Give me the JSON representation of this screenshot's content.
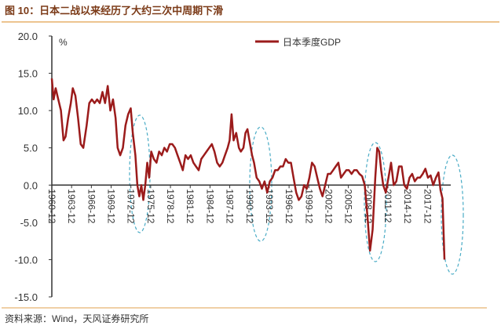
{
  "chart_data": {
    "type": "line",
    "title": "图 10：日本二战以来经历了大约三次中周期下滑",
    "source": "资料来源：Wind，天风证券研究所",
    "y_unit": "%",
    "ylim": [
      -15,
      20
    ],
    "yticks": [
      {
        "value": -15,
        "label": "-15.0"
      },
      {
        "value": -10,
        "label": "-10.0"
      },
      {
        "value": -5,
        "label": "-5.0"
      },
      {
        "value": 0,
        "label": "0.0"
      },
      {
        "value": 5,
        "label": "5.0"
      },
      {
        "value": 10,
        "label": "10.0"
      },
      {
        "value": 15,
        "label": "15.0"
      },
      {
        "value": 20,
        "label": "20.0"
      }
    ],
    "xlim": [
      1960.92,
      2020.5
    ],
    "xticks": [
      {
        "value": 1960.92,
        "label": "1960-12"
      },
      {
        "value": 1963.92,
        "label": "1963-12"
      },
      {
        "value": 1966.92,
        "label": "1966-12"
      },
      {
        "value": 1969.92,
        "label": "1969-12"
      },
      {
        "value": 1972.92,
        "label": "1972-12"
      },
      {
        "value": 1975.92,
        "label": "1975-12"
      },
      {
        "value": 1978.92,
        "label": "1978-12"
      },
      {
        "value": 1981.92,
        "label": "1981-12"
      },
      {
        "value": 1984.92,
        "label": "1984-12"
      },
      {
        "value": 1987.92,
        "label": "1987-12"
      },
      {
        "value": 1990.92,
        "label": "1990-12"
      },
      {
        "value": 1993.92,
        "label": "1993-12"
      },
      {
        "value": 1996.92,
        "label": "1996-12"
      },
      {
        "value": 1999.92,
        "label": "1999-12"
      },
      {
        "value": 2002.92,
        "label": "2002-12"
      },
      {
        "value": 2005.92,
        "label": "2005-12"
      },
      {
        "value": 2008.92,
        "label": "2008-12"
      },
      {
        "value": 2011.92,
        "label": "2011-12"
      },
      {
        "value": 2014.92,
        "label": "2014-12"
      },
      {
        "value": 2017.92,
        "label": "2017-12"
      }
    ],
    "x": [
      1960.92,
      1961.2,
      1961.5,
      1961.9,
      1962.3,
      1962.7,
      1963.0,
      1963.4,
      1963.8,
      1964.1,
      1964.5,
      1964.9,
      1965.3,
      1965.7,
      1966.2,
      1966.6,
      1967.0,
      1967.4,
      1967.8,
      1968.2,
      1968.6,
      1969.0,
      1969.4,
      1969.8,
      1970.2,
      1970.6,
      1970.9,
      1971.3,
      1971.7,
      1972.1,
      1972.5,
      1972.9,
      1973.2,
      1973.6,
      1973.9,
      1974.2,
      1974.5,
      1974.8,
      1975.1,
      1975.4,
      1975.7,
      1976.0,
      1976.4,
      1976.8,
      1977.2,
      1977.6,
      1978.0,
      1978.4,
      1978.8,
      1979.2,
      1979.6,
      1980.0,
      1980.4,
      1980.8,
      1981.2,
      1981.6,
      1982.0,
      1982.4,
      1982.8,
      1983.2,
      1983.6,
      1984.0,
      1984.4,
      1984.8,
      1985.2,
      1985.6,
      1986.0,
      1986.4,
      1986.8,
      1987.2,
      1987.6,
      1987.9,
      1988.2,
      1988.5,
      1988.9,
      1989.3,
      1989.6,
      1990.0,
      1990.3,
      1990.6,
      1990.9,
      1991.3,
      1991.6,
      1992.0,
      1992.4,
      1992.8,
      1993.2,
      1993.6,
      1994.0,
      1994.4,
      1994.8,
      1995.2,
      1995.6,
      1996.0,
      1996.4,
      1996.8,
      1997.2,
      1997.6,
      1998.0,
      1998.4,
      1998.8,
      1999.2,
      1999.6,
      2000.0,
      2000.4,
      2000.8,
      2001.2,
      2001.6,
      2002.0,
      2002.4,
      2002.8,
      2003.2,
      2003.6,
      2004.0,
      2004.4,
      2004.8,
      2005.2,
      2005.6,
      2006.0,
      2006.4,
      2006.8,
      2007.2,
      2007.6,
      2008.0,
      2008.4,
      2008.8,
      2009.2,
      2009.6,
      2010.0,
      2010.3,
      2010.6,
      2010.9,
      2011.2,
      2011.6,
      2012.0,
      2012.4,
      2012.8,
      2013.2,
      2013.6,
      2014.0,
      2014.4,
      2014.8,
      2015.2,
      2015.6,
      2016.0,
      2016.4,
      2016.8,
      2017.2,
      2017.6,
      2018.0,
      2018.4,
      2018.8,
      2019.2,
      2019.6,
      2019.9,
      2020.2,
      2020.5
    ],
    "series": [
      {
        "name": "日本季度GDP",
        "color": "#9b1b1b",
        "values": [
          14.3,
          11.5,
          13,
          11.5,
          10,
          6,
          6.5,
          9,
          11,
          13,
          12,
          9,
          5.5,
          5,
          8,
          11,
          11.5,
          11,
          11.5,
          11,
          12.5,
          11,
          13.3,
          10,
          11.5,
          9,
          5,
          4,
          5,
          8,
          9.5,
          10.3,
          7,
          4,
          0,
          -1.5,
          0,
          -2,
          0,
          3,
          1,
          4.5,
          3.5,
          3,
          4.5,
          4,
          5,
          4.5,
          5.5,
          5.5,
          5,
          4,
          3,
          2,
          4,
          3.5,
          4,
          3,
          2.5,
          2,
          3.5,
          4,
          4.5,
          5,
          5.5,
          4.5,
          3,
          2.5,
          3,
          4,
          5,
          6,
          9.5,
          6,
          7,
          5,
          4.5,
          5,
          7,
          7.5,
          6,
          4,
          3,
          1,
          0.5,
          -0.5,
          0.5,
          -1,
          0.5,
          1,
          2,
          2,
          2.5,
          2.5,
          3.5,
          3,
          3,
          1,
          -1,
          -2,
          -1.5,
          0,
          -0.5,
          1,
          3,
          2.5,
          1,
          -0.5,
          -1.5,
          0,
          1.5,
          1.5,
          2,
          2.5,
          3,
          1,
          1.5,
          2,
          2,
          1.5,
          2,
          2,
          1.5,
          1.2,
          0,
          -4,
          -8.8,
          -6,
          1,
          5,
          4.5,
          2,
          0,
          -1,
          1,
          3,
          0,
          0.5,
          2.5,
          2.5,
          0,
          -0.5,
          1,
          1.5,
          0.5,
          1,
          1,
          1.5,
          2.2,
          1,
          1.3,
          0,
          1,
          1.7,
          -0.7,
          -1.8,
          -10
        ]
      }
    ]
  }
}
